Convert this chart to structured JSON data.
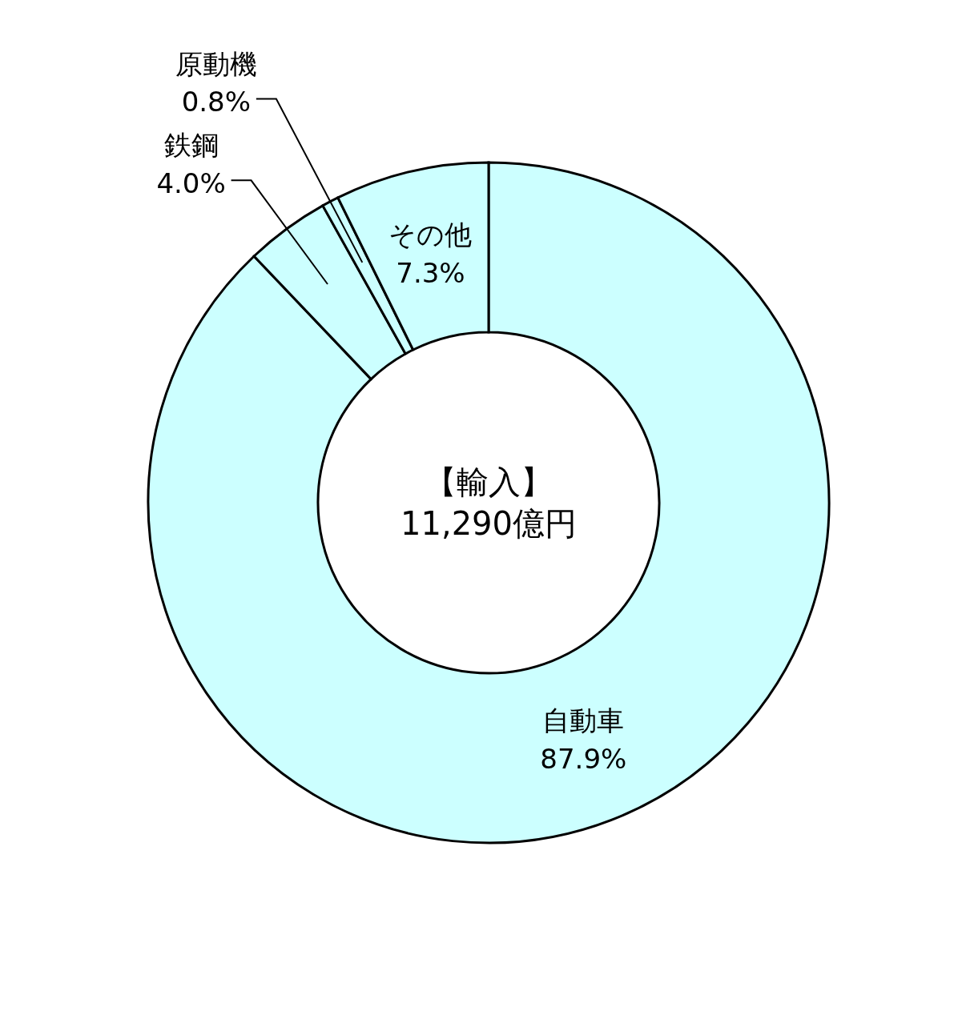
{
  "chart_data": {
    "type": "donut",
    "categories": [
      "自動車",
      "鉄鋼",
      "原動機",
      "その他"
    ],
    "values": [
      87.9,
      4.0,
      0.8,
      7.3
    ],
    "value_labels": [
      "87.9%",
      "4.0%",
      "0.8%",
      "7.3%"
    ],
    "colors": [
      "#ccffff",
      "#ccffff",
      "#ccffff",
      "#ccffff"
    ],
    "annotations": [
      "【輸入】",
      "11,290億円"
    ]
  }
}
